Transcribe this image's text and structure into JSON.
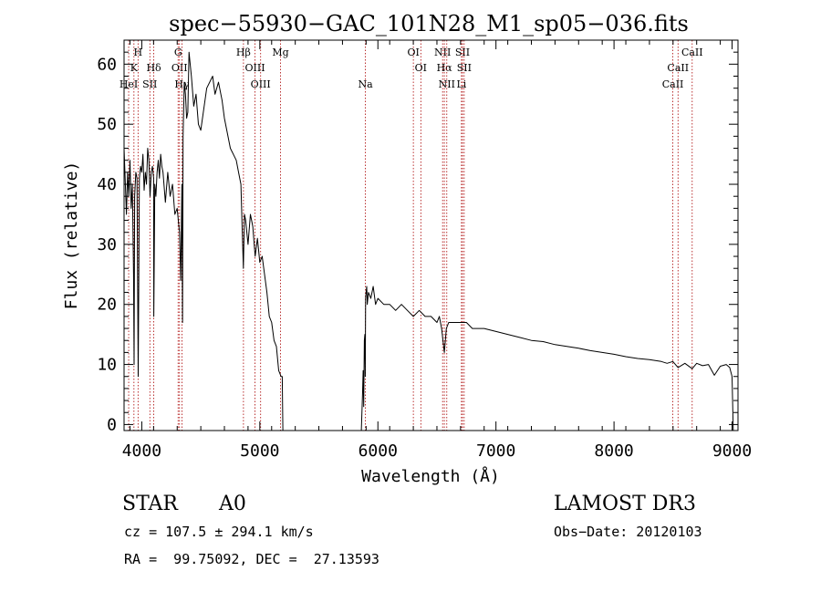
{
  "chart_data": {
    "type": "line",
    "title": "spec−55930−GAC_101N28_M1_sp05−036.fits",
    "xlabel": "Wavelength (Å)",
    "ylabel": "Flux (relative)",
    "xlim": [
      3850,
      9050
    ],
    "ylim": [
      -1,
      64
    ],
    "xticks": [
      4000,
      5000,
      6000,
      7000,
      8000,
      9000
    ],
    "yticks": [
      0,
      10,
      20,
      30,
      40,
      50,
      60
    ],
    "series": [
      {
        "name": "flux",
        "x": [
          3850,
          3870,
          3880,
          3890,
          3900,
          3910,
          3920,
          3930,
          3935,
          3940,
          3950,
          3960,
          3970,
          3980,
          3990,
          4000,
          4010,
          4020,
          4030,
          4040,
          4050,
          4060,
          4070,
          4080,
          4090,
          4100,
          4102,
          4110,
          4120,
          4130,
          4140,
          4150,
          4160,
          4170,
          4180,
          4200,
          4220,
          4240,
          4260,
          4280,
          4300,
          4320,
          4330,
          4340,
          4345,
          4350,
          4360,
          4370,
          4380,
          4390,
          4400,
          4420,
          4440,
          4460,
          4480,
          4500,
          4550,
          4600,
          4620,
          4650,
          4680,
          4700,
          4750,
          4800,
          4820,
          4840,
          4850,
          4861,
          4870,
          4880,
          4900,
          4920,
          4940,
          4960,
          4980,
          5000,
          5020,
          5040,
          5060,
          5080,
          5100,
          5120,
          5140,
          5160,
          5180,
          5190,
          5195,
          5200,
          5210
        ],
        "y": [
          46,
          35,
          42,
          38,
          44,
          36,
          40,
          25,
          10,
          38,
          42,
          41,
          8,
          41,
          43,
          42,
          45,
          39,
          42,
          40,
          46,
          44,
          38,
          42,
          43,
          41,
          18,
          40,
          38,
          42,
          44,
          41,
          45,
          43,
          42,
          37,
          42,
          38,
          40,
          35,
          36,
          32,
          24,
          40,
          17,
          48,
          57,
          55,
          51,
          52,
          62,
          58,
          53,
          55,
          50,
          49,
          56,
          58,
          55,
          57,
          54,
          51,
          46,
          44,
          42,
          40,
          33,
          26,
          35,
          34,
          30,
          35,
          33,
          28,
          31,
          27,
          28,
          25,
          22,
          18,
          17,
          14,
          13,
          9,
          8,
          8,
          -1,
          -1,
          -1
        ]
      },
      {
        "name": "flux",
        "x": [
          5860,
          5870,
          5875,
          5880,
          5885,
          5890,
          5893,
          5896,
          5900,
          5905,
          5910,
          5920,
          5940,
          5960,
          5980,
          6000,
          6050,
          6100,
          6150,
          6200,
          6250,
          6300,
          6350,
          6400,
          6450,
          6500,
          6520,
          6540,
          6563,
          6580,
          6600,
          6650,
          6700,
          6750,
          6800,
          6900,
          7000,
          7100,
          7200,
          7300,
          7400,
          7500,
          7600,
          7700,
          7800,
          7900,
          8000,
          8100,
          8200,
          8300,
          8400,
          8450,
          8498,
          8542,
          8600,
          8662,
          8700,
          8750,
          8800,
          8850,
          8900,
          8950,
          8980,
          9000,
          9010
        ],
        "y": [
          -1,
          5,
          9,
          3,
          14,
          15,
          8,
          21,
          22,
          23,
          20,
          22,
          21,
          23,
          20,
          21,
          20,
          20,
          19,
          20,
          19,
          18,
          19,
          18,
          18,
          17,
          18,
          16,
          12,
          16,
          17,
          17,
          17,
          17,
          16,
          16,
          15.5,
          15,
          14.5,
          14,
          13.8,
          13.3,
          13,
          12.7,
          12.3,
          12,
          11.7,
          11.3,
          11,
          10.8,
          10.5,
          10.2,
          10.5,
          9.5,
          10.2,
          9.3,
          10.2,
          9.8,
          10.0,
          8.2,
          9.7,
          10.0,
          9.5,
          8.0,
          -1
        ]
      }
    ],
    "line_markers": [
      {
        "label": "H",
        "wavelength": 3968.5,
        "row": 0
      },
      {
        "label": "K",
        "wavelength": 3933.7,
        "row": 1
      },
      {
        "label": "HeI",
        "wavelength": 3889.0,
        "row": 2
      },
      {
        "label": "SII",
        "wavelength": 4068.6,
        "row": 2
      },
      {
        "label": "Hδ",
        "wavelength": 4101.7,
        "row": 1
      },
      {
        "label": "G",
        "wavelength": 4307.7,
        "row": 0
      },
      {
        "label": "OII",
        "wavelength": 4319.6,
        "row": 1
      },
      {
        "label": "Hγ",
        "wavelength": 4340.5,
        "row": 2
      },
      {
        "label": "Hβ",
        "wavelength": 4861.3,
        "row": 0
      },
      {
        "label": "OIII",
        "wavelength": 4959.0,
        "row": 1
      },
      {
        "label": "OIII",
        "wavelength": 5006.8,
        "row": 2
      },
      {
        "label": "Mg",
        "wavelength": 5175.0,
        "row": 0
      },
      {
        "label": "Na",
        "wavelength": 5894.0,
        "row": 2
      },
      {
        "label": "OI",
        "wavelength": 6300.3,
        "row": 0
      },
      {
        "label": "OI",
        "wavelength": 6363.8,
        "row": 1
      },
      {
        "label": "NII",
        "wavelength": 6548.1,
        "row": 0
      },
      {
        "label": "Hα",
        "wavelength": 6562.8,
        "row": 1
      },
      {
        "label": "NII",
        "wavelength": 6583.5,
        "row": 2
      },
      {
        "label": "SII",
        "wavelength": 6716.4,
        "row": 0
      },
      {
        "label": "SII",
        "wavelength": 6730.8,
        "row": 1
      },
      {
        "label": "Li",
        "wavelength": 6707.8,
        "row": 2
      },
      {
        "label": "CaII",
        "wavelength": 8662.1,
        "row": 0
      },
      {
        "label": "CaII",
        "wavelength": 8542.1,
        "row": 1
      },
      {
        "label": "CaII",
        "wavelength": 8498.0,
        "row": 2
      }
    ]
  },
  "footer": {
    "class_label": "STAR",
    "subclass": "A0",
    "survey": "LAMOST DR3",
    "cz": "cz = 107.5 ± 294.1 km/s",
    "obs_date": "Obs−Date: 20120103",
    "radec": "RA =  99.75092, DEC =  27.13593"
  },
  "colors": {
    "line": "#000000",
    "marker": "#aa0000",
    "background": "#ffffff"
  }
}
